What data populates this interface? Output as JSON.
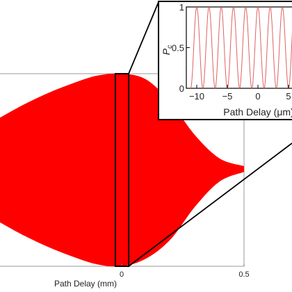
{
  "chart_data": [
    {
      "type": "area",
      "xlabel": "Path Delay (mm)",
      "ylabel": "",
      "xlim": [
        -0.5,
        0.5
      ],
      "ylim": [
        0,
        1
      ],
      "x_ticks": [
        {
          "value": 0,
          "label": "0"
        },
        {
          "value": 0.5,
          "label": "0.5"
        }
      ],
      "envelope": {
        "x": [
          -0.5,
          -0.4,
          -0.3,
          -0.2,
          -0.1,
          0,
          0.1,
          0.2,
          0.3,
          0.4,
          0.5
        ],
        "upper": [
          0.77,
          0.84,
          0.9,
          0.95,
          0.99,
          1.0,
          0.97,
          0.85,
          0.68,
          0.56,
          0.52
        ],
        "lower": [
          0.23,
          0.16,
          0.1,
          0.05,
          0.01,
          0.0,
          0.04,
          0.14,
          0.31,
          0.44,
          0.49
        ]
      },
      "fill_color": "#ff0000",
      "zoom_window": {
        "x": [
          -0.02,
          0.02
        ]
      },
      "grid": true
    },
    {
      "type": "line",
      "xlabel": "Path Delay (μm)",
      "ylabel": "P_c",
      "ylabel_main": "P",
      "ylabel_sub": "c",
      "xlim": [
        -11,
        11
      ],
      "ylim": [
        0,
        1
      ],
      "x_ticks": [
        {
          "value": -10,
          "label": "−10"
        },
        {
          "value": -5,
          "label": "−5"
        },
        {
          "value": 0,
          "label": "0"
        },
        {
          "value": 5,
          "label": "5"
        }
      ],
      "y_ticks": [
        {
          "value": 0,
          "label": "0"
        },
        {
          "value": 0.5,
          "label": "0.5"
        },
        {
          "value": 1,
          "label": "1"
        }
      ],
      "series": [
        {
          "function": "0.5*(1+cos(2*pi*x/2))",
          "period_um": 2,
          "x_range": [
            -11,
            11
          ],
          "color": "#e06060"
        }
      ]
    }
  ]
}
